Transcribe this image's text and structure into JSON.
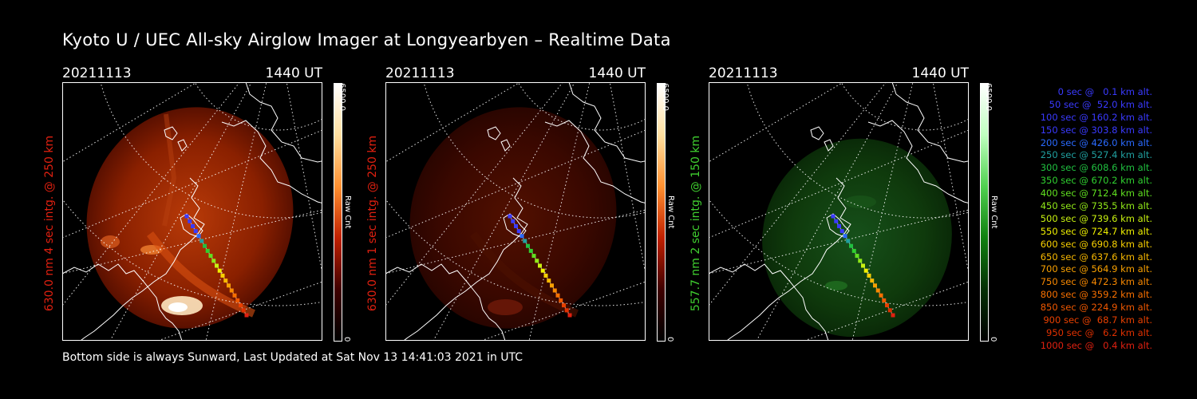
{
  "title": "Kyoto U / UEC All-sky Airglow Imager at Longyearbyen – Realtime Data",
  "footer": "Bottom side is always Sunward, Last Updated at Sat Nov 13 14:41:03 2021 in UTC",
  "panels": [
    {
      "date": "20211113",
      "time": "1440 UT",
      "ylabel": "630.0 nm 4 sec intg. @ 250 km",
      "label_color": "#e02010",
      "colorbar_max": "6500.0",
      "colorbar_unit": "Raw Cnt",
      "colorbar_min": "0",
      "theme": "red"
    },
    {
      "date": "20211113",
      "time": "1440 UT",
      "ylabel": "630.0 nm 1 sec intg. @ 250 km",
      "label_color": "#e02010",
      "colorbar_max": "6500.0",
      "colorbar_unit": "Raw Cnt",
      "colorbar_min": "0",
      "theme": "red-dim"
    },
    {
      "date": "20211113",
      "time": "1440 UT",
      "ylabel": "557.7 nm 2 sec intg. @ 150 km",
      "label_color": "#40d030",
      "colorbar_max": "6500.0",
      "colorbar_unit": "Raw Cnt",
      "colorbar_min": "0",
      "theme": "green"
    }
  ],
  "trajectory_legend": [
    {
      "text": "  0 sec @   0.1 km alt.",
      "color": "#3a3aff"
    },
    {
      "text": " 50 sec @  52.0 km alt.",
      "color": "#3a3aff"
    },
    {
      "text": "100 sec @ 160.2 km alt.",
      "color": "#3a3aff"
    },
    {
      "text": "150 sec @ 303.8 km alt.",
      "color": "#3a3aff"
    },
    {
      "text": "200 sec @ 426.0 km alt.",
      "color": "#2a6aff"
    },
    {
      "text": "250 sec @ 527.4 km alt.",
      "color": "#20a0a0"
    },
    {
      "text": "300 sec @ 608.6 km alt.",
      "color": "#20c040"
    },
    {
      "text": "350 sec @ 670.2 km alt.",
      "color": "#30d030"
    },
    {
      "text": "400 sec @ 712.4 km alt.",
      "color": "#60e020"
    },
    {
      "text": "450 sec @ 735.5 km alt.",
      "color": "#90e818"
    },
    {
      "text": "500 sec @ 739.6 km alt.",
      "color": "#c8f010"
    },
    {
      "text": "550 sec @ 724.7 km alt.",
      "color": "#f0f000"
    },
    {
      "text": "600 sec @ 690.8 km alt.",
      "color": "#f8d000"
    },
    {
      "text": "650 sec @ 637.6 km alt.",
      "color": "#f8b800"
    },
    {
      "text": "700 sec @ 564.9 km alt.",
      "color": "#f8a000"
    },
    {
      "text": "750 sec @ 472.3 km alt.",
      "color": "#f88800"
    },
    {
      "text": "800 sec @ 359.2 km alt.",
      "color": "#f87000"
    },
    {
      "text": "850 sec @ 224.9 km alt.",
      "color": "#f05800"
    },
    {
      "text": "900 sec @  68.7 km alt.",
      "color": "#e84000"
    },
    {
      "text": "950 sec @   6.2 km alt.",
      "color": "#e03000"
    },
    {
      "text": "1000 sec @   0.4 km alt.",
      "color": "#e02010"
    }
  ]
}
